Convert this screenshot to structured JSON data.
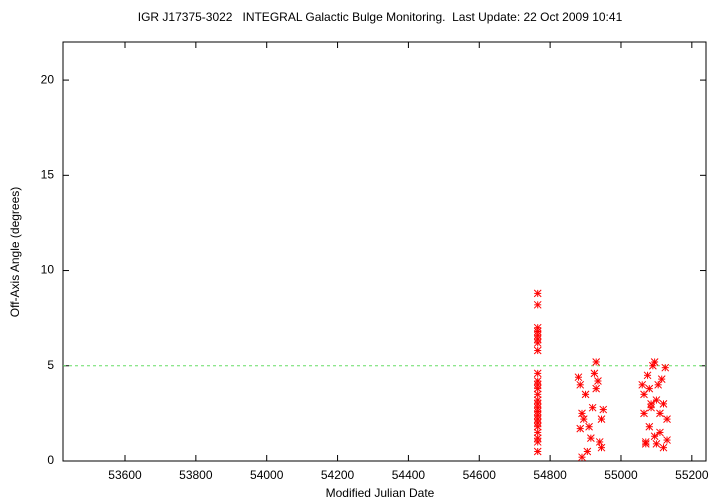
{
  "chart_data": {
    "type": "scatter",
    "title": "IGR J17375-3022   INTEGRAL Galactic Bulge Monitoring.  Last Update: 22 Oct 2009 10:41",
    "xlabel": "Modified Julian Date",
    "ylabel": "Off-Axis Angle (degrees)",
    "xlim": [
      53425,
      55240
    ],
    "ylim": [
      0,
      22
    ],
    "xticks": [
      53600,
      53800,
      54000,
      54200,
      54400,
      54600,
      54800,
      55000,
      55200
    ],
    "yticks": [
      0,
      5,
      10,
      15,
      20
    ],
    "color": "#ff0000",
    "reference_line": {
      "value": 5,
      "color": "#66dd66"
    },
    "x": [
      54765,
      54765,
      54765,
      54765,
      54765,
      54765,
      54765,
      54765,
      54765,
      54765,
      54765,
      54765,
      54765,
      54765,
      54765,
      54765,
      54765,
      54765,
      54765,
      54765,
      54765,
      54765,
      54765,
      54765,
      54765,
      54880,
      54885,
      54890,
      54895,
      54885,
      54900,
      54905,
      54910,
      54915,
      54920,
      54925,
      54930,
      54935,
      54940,
      54945,
      54950,
      54890,
      54930,
      54945,
      55060,
      55065,
      55065,
      55070,
      55075,
      55080,
      55080,
      55085,
      55090,
      55095,
      55095,
      55100,
      55100,
      55105,
      55110,
      55110,
      55115,
      55120,
      55120,
      55125,
      55130,
      55130,
      55070,
      55085
    ],
    "values": [
      8.8,
      8.2,
      7.0,
      6.8,
      6.6,
      6.4,
      6.2,
      5.8,
      4.6,
      4.2,
      4.0,
      3.8,
      3.5,
      3.2,
      3.0,
      2.8,
      2.6,
      2.4,
      2.2,
      2.0,
      1.8,
      1.5,
      1.2,
      1.0,
      0.5,
      4.4,
      4.0,
      2.5,
      2.2,
      1.7,
      3.5,
      0.5,
      1.8,
      1.2,
      2.8,
      4.6,
      5.2,
      4.2,
      1.0,
      2.2,
      2.7,
      0.2,
      3.8,
      0.7,
      4.0,
      3.5,
      2.5,
      1.0,
      4.5,
      3.8,
      1.8,
      2.8,
      5.0,
      5.2,
      1.3,
      3.2,
      0.9,
      4.0,
      2.5,
      1.5,
      4.3,
      3.0,
      0.7,
      4.9,
      2.2,
      1.1,
      0.9,
      3.0
    ]
  }
}
